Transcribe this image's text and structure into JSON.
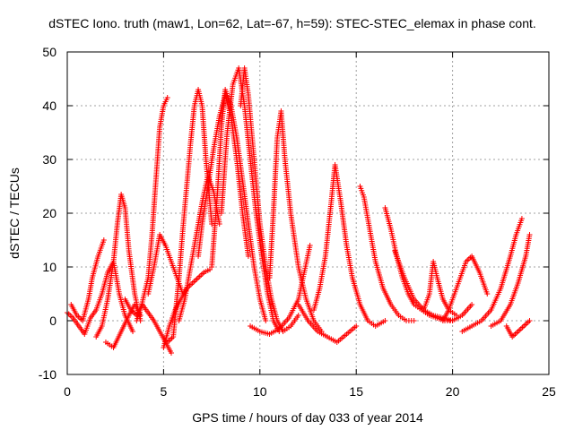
{
  "chart_data": {
    "type": "scatter",
    "title": "dSTEC Iono. truth (maw1, Lon=62, Lat=-67, h=59): STEC-STEC_elemax in phase cont.",
    "xlabel": "GPS time / hours of day 033 of year 2014",
    "ylabel": "dSTEC  / TECUs",
    "xlim": [
      0,
      25
    ],
    "ylim": [
      -10,
      50
    ],
    "x_ticks": [
      0,
      5,
      10,
      15,
      20,
      25
    ],
    "y_ticks": [
      -10,
      0,
      10,
      20,
      30,
      40,
      50
    ],
    "x_tick_labels": [
      "0",
      "5",
      "10",
      "15",
      "20",
      "25"
    ],
    "y_tick_labels": [
      "-10",
      "0",
      "10",
      "20",
      "30",
      "40",
      "50"
    ],
    "grid": true,
    "marker": "+",
    "color": "#ff0000",
    "series": [
      {
        "x": [
          0.0,
          0.3,
          0.6,
          0.9,
          1.2,
          1.5,
          1.8,
          2.1,
          2.4,
          2.7,
          3.0,
          3.4
        ],
        "y": [
          1.5,
          0.5,
          -1.0,
          -2.5,
          0.5,
          2.0,
          5.0,
          9.0,
          11.0,
          5.0,
          1.0,
          -2.0
        ]
      },
      {
        "x": [
          0.2,
          0.5,
          0.8,
          1.1,
          1.3,
          1.6,
          1.9
        ],
        "y": [
          3.0,
          1.0,
          0.0,
          4.0,
          8.0,
          12.0,
          15.0
        ]
      },
      {
        "x": [
          1.5,
          1.8,
          2.1,
          2.4,
          2.6,
          2.8,
          3.0,
          3.2,
          3.5,
          3.8
        ],
        "y": [
          -3.0,
          -1.0,
          4.0,
          11.0,
          18.0,
          23.5,
          21.0,
          13.0,
          5.0,
          0.0
        ]
      },
      {
        "x": [
          2.0,
          2.4,
          2.8,
          3.2,
          3.5,
          3.8
        ],
        "y": [
          -4.0,
          -5.0,
          -2.0,
          1.0,
          3.0,
          1.0
        ]
      },
      {
        "x": [
          3.0,
          3.3,
          3.6,
          3.9,
          4.2,
          4.5,
          4.8,
          5.1,
          5.4
        ],
        "y": [
          4.0,
          2.0,
          1.0,
          3.0,
          1.5,
          0.0,
          -2.0,
          -4.0,
          -6.0
        ]
      },
      {
        "x": [
          3.6,
          3.8,
          4.0,
          4.2,
          4.4,
          4.6,
          4.8,
          5.0,
          5.2
        ],
        "y": [
          0.0,
          2.0,
          5.0,
          8.0,
          16.0,
          26.0,
          36.0,
          40.0,
          41.5
        ]
      },
      {
        "x": [
          4.2,
          4.5,
          4.8,
          5.1,
          5.4,
          5.7,
          6.0
        ],
        "y": [
          5.0,
          10.0,
          16.0,
          14.0,
          11.0,
          8.0,
          5.0
        ]
      },
      {
        "x": [
          5.0,
          5.3,
          5.6,
          5.9,
          6.2,
          6.5,
          6.8,
          7.1,
          7.4
        ],
        "y": [
          -5.0,
          -1.0,
          2.0,
          4.0,
          6.0,
          7.0,
          8.0,
          9.0,
          9.5
        ]
      },
      {
        "x": [
          5.2,
          5.5,
          5.8,
          6.0,
          6.2,
          6.4,
          6.6,
          6.8,
          7.0,
          7.2,
          7.5
        ],
        "y": [
          -4.0,
          -3.0,
          8.0,
          17.0,
          25.0,
          33.0,
          40.0,
          43.0,
          40.0,
          30.0,
          18.0
        ]
      },
      {
        "x": [
          5.8,
          6.1,
          6.4,
          6.7,
          7.0,
          7.3,
          7.6,
          7.9
        ],
        "y": [
          0.0,
          4.0,
          10.0,
          16.0,
          22.0,
          27.0,
          24.0,
          18.0
        ]
      },
      {
        "x": [
          6.8,
          7.0,
          7.3,
          7.6,
          7.9,
          8.2,
          8.5,
          8.8,
          9.1,
          9.4
        ],
        "y": [
          12.0,
          18.0,
          25.0,
          32.0,
          38.0,
          42.0,
          38.0,
          30.0,
          20.0,
          12.0
        ]
      },
      {
        "x": [
          7.5,
          7.8,
          8.0,
          8.2,
          8.5,
          8.8,
          9.1,
          9.4,
          9.7,
          10.0,
          10.3
        ],
        "y": [
          10.0,
          24.0,
          36.0,
          43.0,
          40.0,
          34.0,
          26.0,
          18.0,
          10.0,
          4.0,
          0.0
        ]
      },
      {
        "x": [
          8.0,
          8.3,
          8.6,
          8.9,
          9.2,
          9.5,
          9.8,
          10.1,
          10.4,
          10.7,
          11.0
        ],
        "y": [
          20.0,
          35.0,
          44.0,
          47.0,
          40.0,
          30.0,
          20.0,
          12.0,
          5.0,
          0.0,
          -2.0
        ]
      },
      {
        "x": [
          9.0,
          9.2,
          9.4,
          9.6,
          9.8,
          10.0,
          10.3,
          10.6,
          10.9,
          11.2,
          11.6,
          12.0
        ],
        "y": [
          40.0,
          47.0,
          42.0,
          34.0,
          26.0,
          18.0,
          10.0,
          4.0,
          0.0,
          -2.0,
          -1.0,
          1.0
        ]
      },
      {
        "x": [
          10.5,
          10.7,
          10.9,
          11.1,
          11.3,
          11.6,
          12.0,
          12.4,
          12.8,
          13.2
        ],
        "y": [
          8.0,
          20.0,
          34.0,
          39.0,
          30.0,
          20.0,
          10.0,
          4.0,
          0.0,
          -2.0
        ]
      },
      {
        "x": [
          9.5,
          10.0,
          10.5,
          11.0,
          11.5,
          12.0,
          12.3,
          12.6
        ],
        "y": [
          -1.0,
          -2.0,
          -2.5,
          -1.5,
          0.5,
          4.0,
          9.0,
          14.0
        ]
      },
      {
        "x": [
          12.0,
          12.5,
          13.0,
          13.5,
          14.0,
          14.5,
          15.0
        ],
        "y": [
          3.0,
          0.0,
          -2.0,
          -3.0,
          -4.0,
          -2.5,
          -1.0
        ]
      },
      {
        "x": [
          12.8,
          13.1,
          13.4,
          13.7,
          13.9,
          14.2,
          14.5,
          14.8,
          15.2,
          15.6,
          16.0,
          16.5
        ],
        "y": [
          2.0,
          6.0,
          12.0,
          22.0,
          29.0,
          22.0,
          14.0,
          8.0,
          3.0,
          0.0,
          -1.0,
          0.0
        ]
      },
      {
        "x": [
          15.2,
          15.4,
          15.7,
          16.0,
          16.4,
          16.8,
          17.2,
          17.6,
          18.0
        ],
        "y": [
          25.0,
          23.0,
          17.0,
          11.0,
          6.0,
          3.0,
          1.0,
          0.0,
          0.0
        ]
      },
      {
        "x": [
          16.5,
          16.8,
          17.1,
          17.4,
          17.7,
          18.0,
          18.4,
          18.8,
          19.2,
          19.6,
          20.0
        ],
        "y": [
          21.0,
          17.0,
          12.0,
          8.0,
          5.0,
          3.0,
          2.0,
          1.0,
          0.5,
          0.0,
          0.0
        ]
      },
      {
        "x": [
          17.0,
          17.5,
          18.0,
          18.5,
          19.0,
          19.5,
          20.0,
          20.5,
          21.0
        ],
        "y": [
          13.0,
          8.0,
          4.0,
          2.0,
          1.0,
          0.5,
          0.0,
          1.0,
          3.0
        ]
      },
      {
        "x": [
          18.5,
          18.8,
          19.0,
          19.2,
          19.5,
          19.8,
          20.2
        ],
        "y": [
          2.0,
          5.0,
          11.0,
          8.0,
          4.0,
          2.0,
          1.0
        ]
      },
      {
        "x": [
          19.5,
          19.8,
          20.1,
          20.4,
          20.7,
          21.0,
          21.4,
          21.8
        ],
        "y": [
          0.0,
          2.0,
          5.0,
          8.0,
          11.0,
          12.0,
          9.0,
          5.0
        ]
      },
      {
        "x": [
          20.5,
          21.0,
          21.5,
          22.0,
          22.5,
          23.0,
          23.3,
          23.6
        ],
        "y": [
          -2.0,
          -1.0,
          0.0,
          2.0,
          6.0,
          12.0,
          16.0,
          19.0
        ]
      },
      {
        "x": [
          22.0,
          22.5,
          23.0,
          23.4,
          23.8,
          24.0
        ],
        "y": [
          -1.0,
          0.0,
          3.0,
          7.0,
          12.0,
          16.0
        ]
      },
      {
        "x": [
          22.8,
          23.1,
          23.4,
          23.7,
          24.0
        ],
        "y": [
          -1.0,
          -3.0,
          -2.0,
          -1.0,
          0.0
        ]
      }
    ]
  }
}
